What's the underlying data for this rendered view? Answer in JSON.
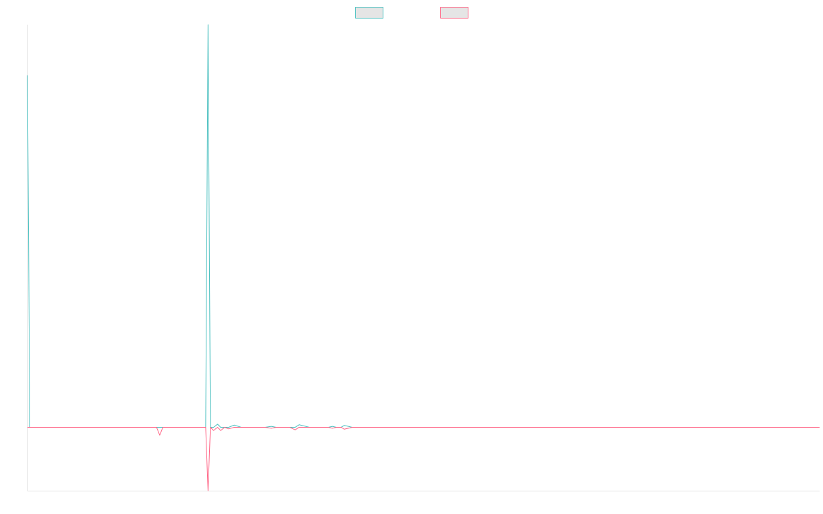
{
  "chart_data": {
    "type": "line",
    "title": "",
    "xlabel": "",
    "ylabel": "",
    "grid": false,
    "legend_position": "top-center",
    "ylim": [
      -20,
      127
    ],
    "x_count": 100,
    "series": [
      {
        "color": "#4bc0c0",
        "legend_fill": "#e5e5e5",
        "points": [
          [
            0,
            111
          ],
          [
            0.3,
            0
          ],
          [
            22.5,
            0
          ],
          [
            22.8,
            127
          ],
          [
            23.1,
            0
          ],
          [
            23.5,
            0
          ],
          [
            24,
            1
          ],
          [
            24.4,
            0
          ],
          [
            24.9,
            0
          ],
          [
            25.4,
            0
          ],
          [
            26.1,
            0.7
          ],
          [
            27,
            0
          ],
          [
            28,
            0
          ],
          [
            29,
            0
          ],
          [
            30,
            0
          ],
          [
            30.8,
            0.3
          ],
          [
            31.4,
            0
          ],
          [
            32,
            0
          ],
          [
            33.1,
            0
          ],
          [
            33.8,
            0
          ],
          [
            34.3,
            0.8
          ],
          [
            35.6,
            0
          ],
          [
            36.5,
            0
          ],
          [
            37,
            0
          ],
          [
            38,
            0
          ],
          [
            38.5,
            0.3
          ],
          [
            39,
            0
          ],
          [
            39.6,
            0
          ],
          [
            40,
            0.6
          ],
          [
            41,
            0
          ],
          [
            42,
            0
          ],
          [
            100,
            0
          ]
        ]
      },
      {
        "color": "#ff6384",
        "legend_fill": "#e5e5e5",
        "points": [
          [
            0,
            0
          ],
          [
            16.3,
            0
          ],
          [
            16.7,
            -2.5
          ],
          [
            17.1,
            0
          ],
          [
            22.5,
            0
          ],
          [
            22.8,
            -20
          ],
          [
            23.1,
            0
          ],
          [
            23.5,
            -1
          ],
          [
            24,
            0
          ],
          [
            24.4,
            -1
          ],
          [
            24.9,
            0
          ],
          [
            25.4,
            -0.5
          ],
          [
            26.1,
            0
          ],
          [
            27,
            0
          ],
          [
            28,
            0
          ],
          [
            29,
            0
          ],
          [
            30,
            0
          ],
          [
            30.8,
            -0.3
          ],
          [
            31.4,
            0
          ],
          [
            32,
            0
          ],
          [
            33.1,
            0
          ],
          [
            33.8,
            -0.8
          ],
          [
            34.3,
            0
          ],
          [
            35.6,
            0
          ],
          [
            36.5,
            0
          ],
          [
            37,
            0
          ],
          [
            38,
            0
          ],
          [
            38.5,
            -0.3
          ],
          [
            39,
            0
          ],
          [
            39.6,
            0
          ],
          [
            40,
            -0.6
          ],
          [
            41,
            0
          ],
          [
            42,
            0
          ],
          [
            100,
            0
          ]
        ]
      }
    ]
  }
}
